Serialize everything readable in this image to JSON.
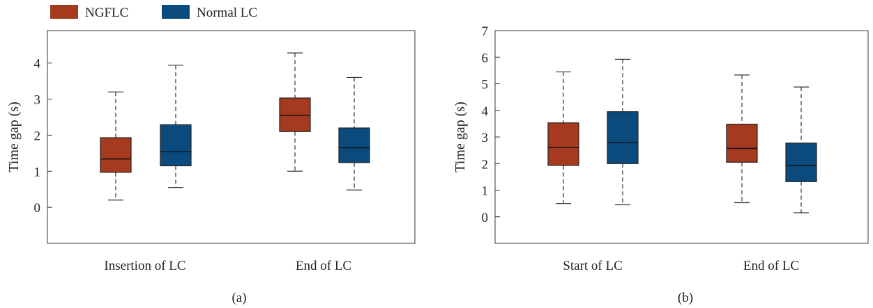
{
  "legend": [
    {
      "label": "NGFLC",
      "color": "#A63A1E"
    },
    {
      "label": "Normal LC",
      "color": "#0B4A7D"
    }
  ],
  "chart_data": [
    {
      "type": "box",
      "panel_label": "(a)",
      "ylabel": "Time gap (s)",
      "ylim": [
        -1,
        4.9
      ],
      "yticks": [
        0,
        1,
        2,
        3,
        4
      ],
      "categories": [
        "Insertion of LC",
        "End of LC"
      ],
      "series": [
        {
          "name": "NGFLC",
          "boxes": [
            {
              "min": 0.2,
              "q1": 0.97,
              "median": 1.34,
              "q3": 1.93,
              "max": 3.2
            },
            {
              "min": 1.0,
              "q1": 2.1,
              "median": 2.55,
              "q3": 3.03,
              "max": 4.28
            }
          ]
        },
        {
          "name": "Normal LC",
          "boxes": [
            {
              "min": 0.55,
              "q1": 1.15,
              "median": 1.54,
              "q3": 2.29,
              "max": 3.94
            },
            {
              "min": 0.48,
              "q1": 1.24,
              "median": 1.65,
              "q3": 2.2,
              "max": 3.6
            }
          ]
        }
      ]
    },
    {
      "type": "box",
      "panel_label": "(b)",
      "ylabel": "Time gap (s)",
      "ylim": [
        -1,
        7
      ],
      "yticks": [
        0,
        1,
        2,
        3,
        4,
        5,
        6,
        7
      ],
      "categories": [
        "Start of LC",
        "End of LC"
      ],
      "series": [
        {
          "name": "NGFLC",
          "boxes": [
            {
              "min": 0.5,
              "q1": 1.93,
              "median": 2.6,
              "q3": 3.53,
              "max": 5.45
            },
            {
              "min": 0.53,
              "q1": 2.05,
              "median": 2.57,
              "q3": 3.48,
              "max": 5.33
            }
          ]
        },
        {
          "name": "Normal LC",
          "boxes": [
            {
              "min": 0.45,
              "q1": 2.0,
              "median": 2.8,
              "q3": 3.95,
              "max": 5.92
            },
            {
              "min": 0.15,
              "q1": 1.32,
              "median": 1.93,
              "q3": 2.77,
              "max": 4.88
            }
          ]
        }
      ]
    }
  ]
}
